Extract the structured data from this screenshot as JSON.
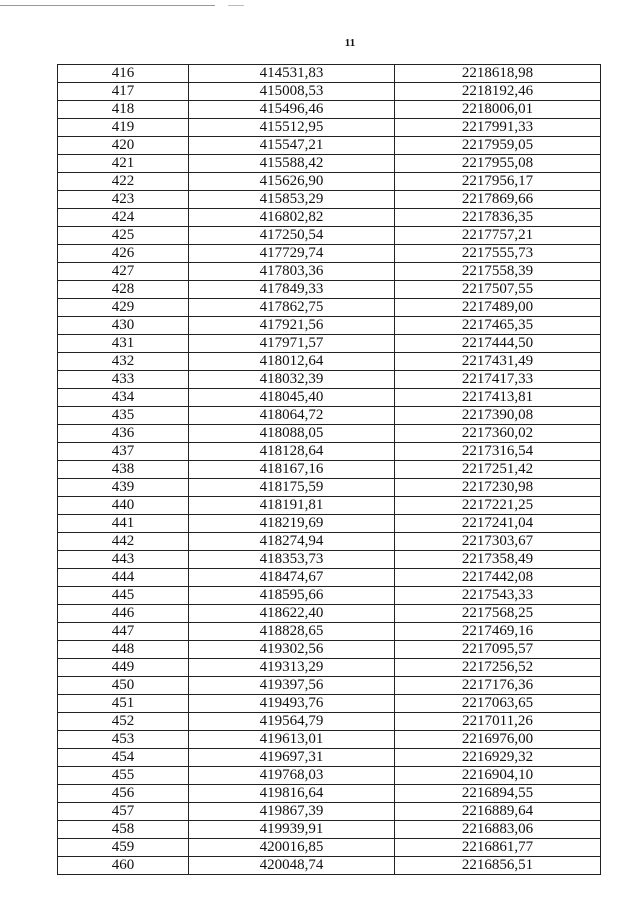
{
  "page_number": "11",
  "rows": [
    [
      "416",
      "414531,83",
      "2218618,98"
    ],
    [
      "417",
      "415008,53",
      "2218192,46"
    ],
    [
      "418",
      "415496,46",
      "2218006,01"
    ],
    [
      "419",
      "415512,95",
      "2217991,33"
    ],
    [
      "420",
      "415547,21",
      "2217959,05"
    ],
    [
      "421",
      "415588,42",
      "2217955,08"
    ],
    [
      "422",
      "415626,90",
      "2217956,17"
    ],
    [
      "423",
      "415853,29",
      "2217869,66"
    ],
    [
      "424",
      "416802,82",
      "2217836,35"
    ],
    [
      "425",
      "417250,54",
      "2217757,21"
    ],
    [
      "426",
      "417729,74",
      "2217555,73"
    ],
    [
      "427",
      "417803,36",
      "2217558,39"
    ],
    [
      "428",
      "417849,33",
      "2217507,55"
    ],
    [
      "429",
      "417862,75",
      "2217489,00"
    ],
    [
      "430",
      "417921,56",
      "2217465,35"
    ],
    [
      "431",
      "417971,57",
      "2217444,50"
    ],
    [
      "432",
      "418012,64",
      "2217431,49"
    ],
    [
      "433",
      "418032,39",
      "2217417,33"
    ],
    [
      "434",
      "418045,40",
      "2217413,81"
    ],
    [
      "435",
      "418064,72",
      "2217390,08"
    ],
    [
      "436",
      "418088,05",
      "2217360,02"
    ],
    [
      "437",
      "418128,64",
      "2217316,54"
    ],
    [
      "438",
      "418167,16",
      "2217251,42"
    ],
    [
      "439",
      "418175,59",
      "2217230,98"
    ],
    [
      "440",
      "418191,81",
      "2217221,25"
    ],
    [
      "441",
      "418219,69",
      "2217241,04"
    ],
    [
      "442",
      "418274,94",
      "2217303,67"
    ],
    [
      "443",
      "418353,73",
      "2217358,49"
    ],
    [
      "444",
      "418474,67",
      "2217442,08"
    ],
    [
      "445",
      "418595,66",
      "2217543,33"
    ],
    [
      "446",
      "418622,40",
      "2217568,25"
    ],
    [
      "447",
      "418828,65",
      "2217469,16"
    ],
    [
      "448",
      "419302,56",
      "2217095,57"
    ],
    [
      "449",
      "419313,29",
      "2217256,52"
    ],
    [
      "450",
      "419397,56",
      "2217176,36"
    ],
    [
      "451",
      "419493,76",
      "2217063,65"
    ],
    [
      "452",
      "419564,79",
      "2217011,26"
    ],
    [
      "453",
      "419613,01",
      "2216976,00"
    ],
    [
      "454",
      "419697,31",
      "2216929,32"
    ],
    [
      "455",
      "419768,03",
      "2216904,10"
    ],
    [
      "456",
      "419816,64",
      "2216894,55"
    ],
    [
      "457",
      "419867,39",
      "2216889,64"
    ],
    [
      "458",
      "419939,91",
      "2216883,06"
    ],
    [
      "459",
      "420016,85",
      "2216861,77"
    ],
    [
      "460",
      "420048,74",
      "2216856,51"
    ]
  ]
}
